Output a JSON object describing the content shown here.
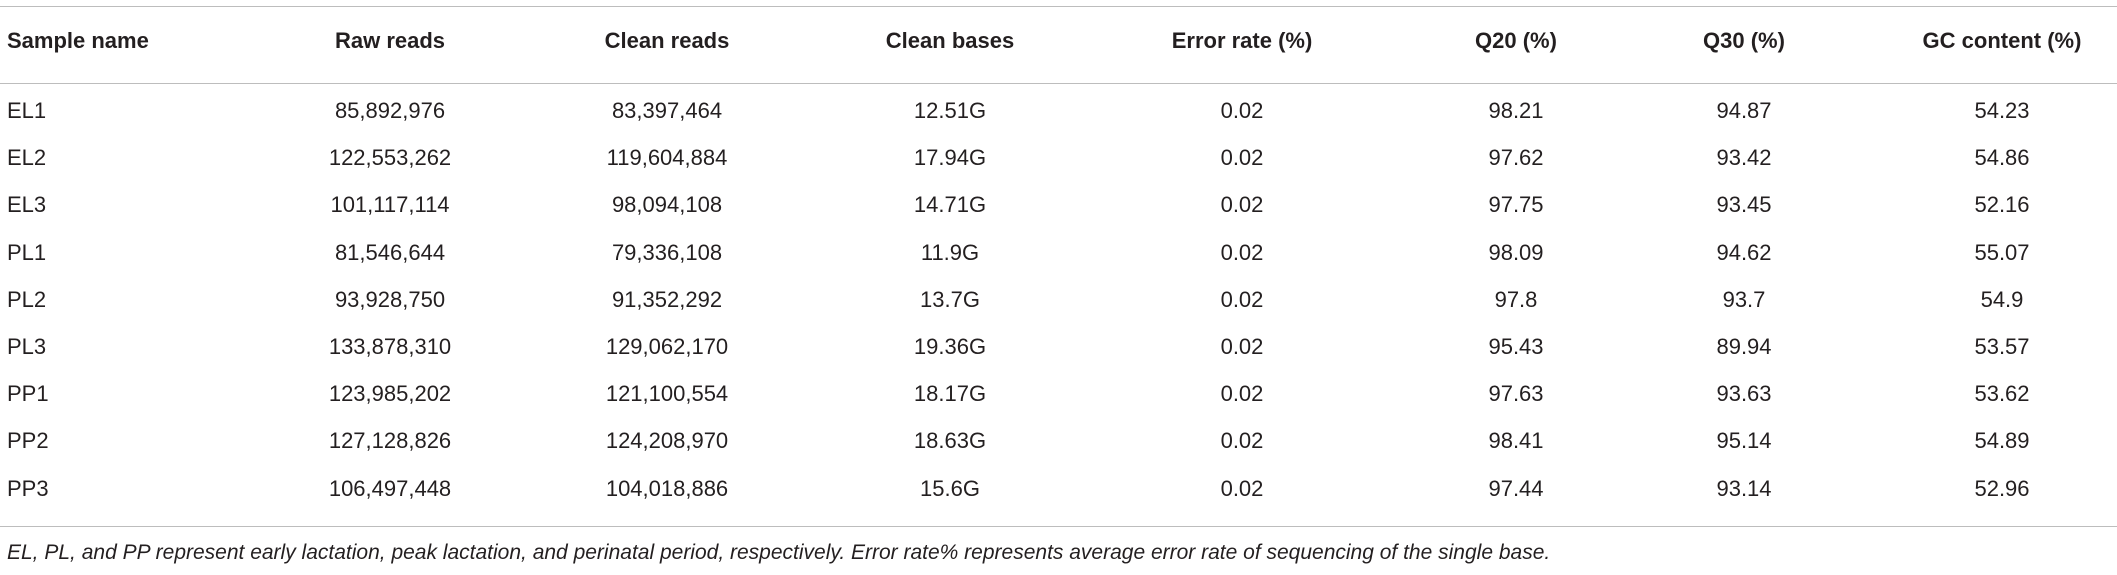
{
  "table": {
    "header": [
      "Sample name",
      "Raw reads",
      "Clean reads",
      "Clean bases",
      "Error rate (%)",
      "Q20 (%)",
      "Q30 (%)",
      "GC content (%)"
    ],
    "rows": [
      [
        "EL1",
        "85,892,976",
        "83,397,464",
        "12.51G",
        "0.02",
        "98.21",
        "94.87",
        "54.23"
      ],
      [
        "EL2",
        "122,553,262",
        "119,604,884",
        "17.94G",
        "0.02",
        "97.62",
        "93.42",
        "54.86"
      ],
      [
        "EL3",
        "101,117,114",
        "98,094,108",
        "14.71G",
        "0.02",
        "97.75",
        "93.45",
        "52.16"
      ],
      [
        "PL1",
        "81,546,644",
        "79,336,108",
        "11.9G",
        "0.02",
        "98.09",
        "94.62",
        "55.07"
      ],
      [
        "PL2",
        "93,928,750",
        "91,352,292",
        "13.7G",
        "0.02",
        "97.8",
        "93.7",
        "54.9"
      ],
      [
        "PL3",
        "133,878,310",
        "129,062,170",
        "19.36G",
        "0.02",
        "95.43",
        "89.94",
        "53.57"
      ],
      [
        "PP1",
        "123,985,202",
        "121,100,554",
        "18.17G",
        "0.02",
        "97.63",
        "93.63",
        "53.62"
      ],
      [
        "PP2",
        "127,128,826",
        "124,208,970",
        "18.63G",
        "0.02",
        "98.41",
        "95.14",
        "54.89"
      ],
      [
        "PP3",
        "106,497,448",
        "104,018,886",
        "15.6G",
        "0.02",
        "97.44",
        "93.14",
        "52.96"
      ]
    ],
    "footnote": "EL, PL, and PP represent early lactation, peak lactation, and perinatal period, respectively. Error rate% represents average error rate of sequencing of the single base."
  }
}
